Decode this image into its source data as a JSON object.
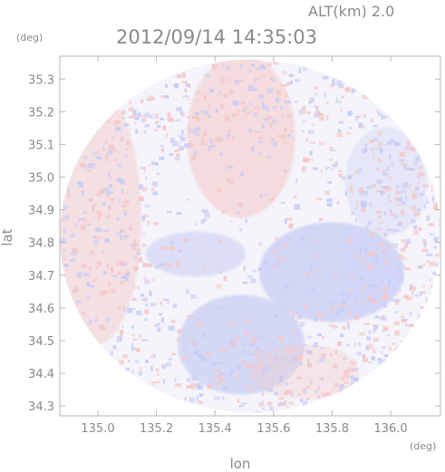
{
  "chart_data": {
    "type": "heatmap",
    "timestamp": "2012/09/14 14:35:03",
    "altitude_label": "ALT(km) 2.0",
    "x_unit": "(deg)",
    "y_unit": "(deg)",
    "xlabel": "lon",
    "ylabel": "lat",
    "xlim": [
      134.87,
      136.17
    ],
    "ylim": [
      34.27,
      35.37
    ],
    "x_ticks": [
      135.0,
      135.2,
      135.4,
      135.6,
      135.8,
      136.0
    ],
    "y_ticks": [
      34.3,
      34.4,
      34.5,
      34.6,
      34.7,
      34.8,
      34.9,
      35.0,
      35.1,
      35.2,
      35.3
    ],
    "x_tick_labels": [
      "135.0",
      "135.2",
      "135.4",
      "135.6",
      "135.8",
      "136.0"
    ],
    "y_tick_labels": [
      "34.3",
      "34.4",
      "34.5",
      "34.6",
      "34.7",
      "34.8",
      "34.9",
      "35.0",
      "35.1",
      "35.2",
      "35.3"
    ],
    "radar_center": {
      "lon": 135.52,
      "lat": 34.82
    },
    "radar_range_deg": {
      "lon": 0.65,
      "lat": 0.54
    },
    "grid": false,
    "colors": {
      "positive": "#f4c8c8",
      "negative": "#c8cdf4",
      "neutral": "#f4f4fa",
      "frame": "#b8b8b8",
      "text": "#8a8a8a"
    }
  }
}
